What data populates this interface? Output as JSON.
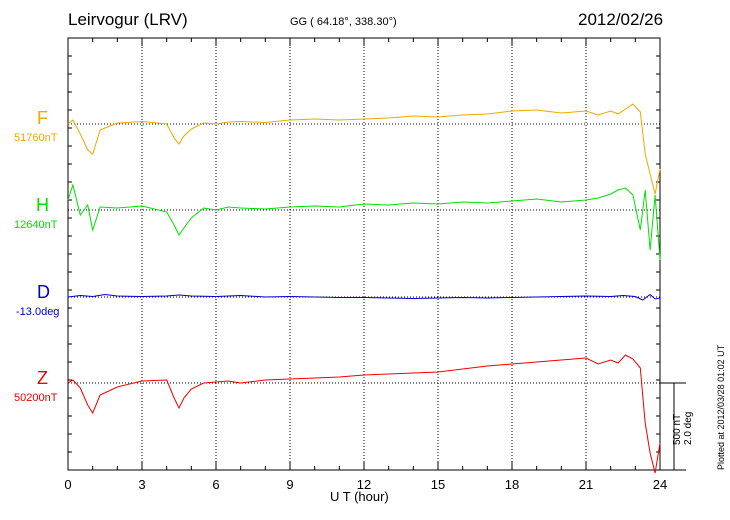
{
  "header": {
    "station": "Leirvogur (LRV)",
    "coords": "GG ( 64.18°, 338.30°)",
    "date": "2012/02/26"
  },
  "footer": {
    "plotted": "Plotted at 2012/03/28 01:02 UT"
  },
  "scale": {
    "nt": "500 nT",
    "deg": "2.0 deg"
  },
  "chart_data": {
    "type": "line",
    "xlabel": "U T (hour)",
    "xlim": [
      0,
      24
    ],
    "xticks": [
      0,
      3,
      6,
      9,
      12,
      15,
      18,
      21,
      24
    ],
    "grid": true,
    "components": [
      {
        "name": "F",
        "baseline": "51760nT",
        "color": "#f0a800"
      },
      {
        "name": "H",
        "baseline": "12640nT",
        "color": "#00e000"
      },
      {
        "name": "D",
        "baseline": "-13.0deg",
        "color": "#0000cc"
      },
      {
        "name": "Z",
        "baseline": "50200nT",
        "color": "#ee0000"
      }
    ],
    "series": [
      {
        "name": "F",
        "x": [
          0,
          0.2,
          0.5,
          0.8,
          1.0,
          1.3,
          2,
          3,
          4,
          4.3,
          4.5,
          4.7,
          5,
          5.5,
          6,
          6.5,
          7,
          8,
          9,
          10,
          11,
          12,
          13,
          14,
          15,
          16,
          17,
          18,
          19,
          20,
          21,
          21.5,
          22,
          22.3,
          22.6,
          22.9,
          23.2,
          23.4,
          23.6,
          23.8,
          24
        ],
        "y": [
          0,
          40,
          -100,
          -260,
          -300,
          -60,
          10,
          25,
          0,
          -140,
          -200,
          -120,
          -50,
          10,
          0,
          20,
          25,
          15,
          40,
          50,
          40,
          50,
          60,
          80,
          70,
          90,
          100,
          130,
          140,
          110,
          130,
          90,
          130,
          100,
          150,
          200,
          120,
          -300,
          -500,
          -700,
          -450
        ]
      },
      {
        "name": "H",
        "x": [
          0,
          0.2,
          0.5,
          0.8,
          1.0,
          1.3,
          2,
          3,
          4,
          4.3,
          4.5,
          4.7,
          5,
          5.5,
          6,
          6.5,
          7,
          8,
          9,
          10,
          11,
          12,
          13,
          14,
          15,
          16,
          17,
          18,
          19,
          20,
          21,
          21.5,
          22,
          22.3,
          22.6,
          22.9,
          23.2,
          23.4,
          23.6,
          23.8,
          24
        ],
        "y": [
          100,
          250,
          -50,
          50,
          -200,
          30,
          20,
          40,
          -20,
          -150,
          -250,
          -180,
          -80,
          20,
          0,
          30,
          20,
          10,
          30,
          40,
          30,
          60,
          50,
          70,
          60,
          80,
          70,
          90,
          110,
          80,
          100,
          120,
          160,
          200,
          220,
          150,
          -200,
          200,
          -400,
          150,
          -500
        ]
      },
      {
        "name": "D",
        "x": [
          0,
          0.5,
          1.0,
          1.5,
          2,
          3,
          4,
          4.5,
          5,
          6,
          7,
          8,
          9,
          10,
          11,
          12,
          13,
          14,
          15,
          16,
          17,
          18,
          19,
          20,
          21,
          22,
          22.5,
          23,
          23.3,
          23.6,
          23.8,
          24
        ],
        "y": [
          0,
          0.3,
          0.1,
          0.5,
          0.2,
          0.1,
          0.2,
          0.4,
          0.2,
          0.1,
          0.3,
          0.0,
          0.1,
          0.0,
          -0.1,
          -0.1,
          -0.2,
          -0.3,
          -0.2,
          -0.1,
          -0.2,
          -0.1,
          0.0,
          0.1,
          0.2,
          0.1,
          0.3,
          0.1,
          -0.6,
          0.5,
          -0.4,
          -0.2
        ]
      },
      {
        "name": "Z",
        "x": [
          0,
          0.2,
          0.5,
          0.8,
          1.0,
          1.3,
          2,
          3,
          4,
          4.3,
          4.5,
          4.7,
          5,
          5.5,
          6,
          6.5,
          7,
          8,
          9,
          10,
          11,
          12,
          13,
          14,
          15,
          16,
          17,
          18,
          19,
          20,
          21,
          21.5,
          22,
          22.3,
          22.6,
          22.9,
          23.2,
          23.4,
          23.6,
          23.8,
          24
        ],
        "y": [
          0,
          30,
          -50,
          -220,
          -300,
          -120,
          -40,
          20,
          30,
          -150,
          -250,
          -150,
          -60,
          0,
          10,
          20,
          0,
          30,
          40,
          50,
          60,
          80,
          90,
          100,
          110,
          140,
          170,
          190,
          210,
          230,
          250,
          190,
          230,
          200,
          280,
          240,
          150,
          -400,
          -700,
          -900,
          -600
        ]
      }
    ]
  }
}
